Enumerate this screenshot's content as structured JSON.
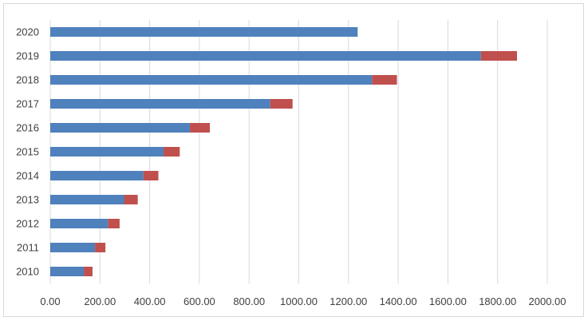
{
  "chart_data": {
    "type": "bar",
    "orientation": "horizontal",
    "stacked": true,
    "title": "",
    "xlabel": "",
    "ylabel": "",
    "categories": [
      "2010",
      "2011",
      "2012",
      "2013",
      "2014",
      "2015",
      "2016",
      "2017",
      "2018",
      "2019",
      "2020"
    ],
    "series": [
      {
        "values": [
          135,
          180,
          232,
          297,
          375,
          456,
          562,
          885,
          1295,
          1733,
          1237
        ],
        "color": "#4f81bd"
      },
      {
        "values": [
          35,
          42,
          47,
          55,
          60,
          65,
          80,
          90,
          100,
          145,
          0
        ],
        "color": "#c0504d"
      }
    ],
    "xlim": [
      0,
      2000
    ],
    "x_ticks": [
      "0.00",
      "200.00",
      "400.00",
      "600.00",
      "800.00",
      "1000.00",
      "1200.00",
      "1400.00",
      "1600.00",
      "1800.00",
      "2000.00"
    ],
    "grid": "vertical",
    "legend": "none"
  }
}
